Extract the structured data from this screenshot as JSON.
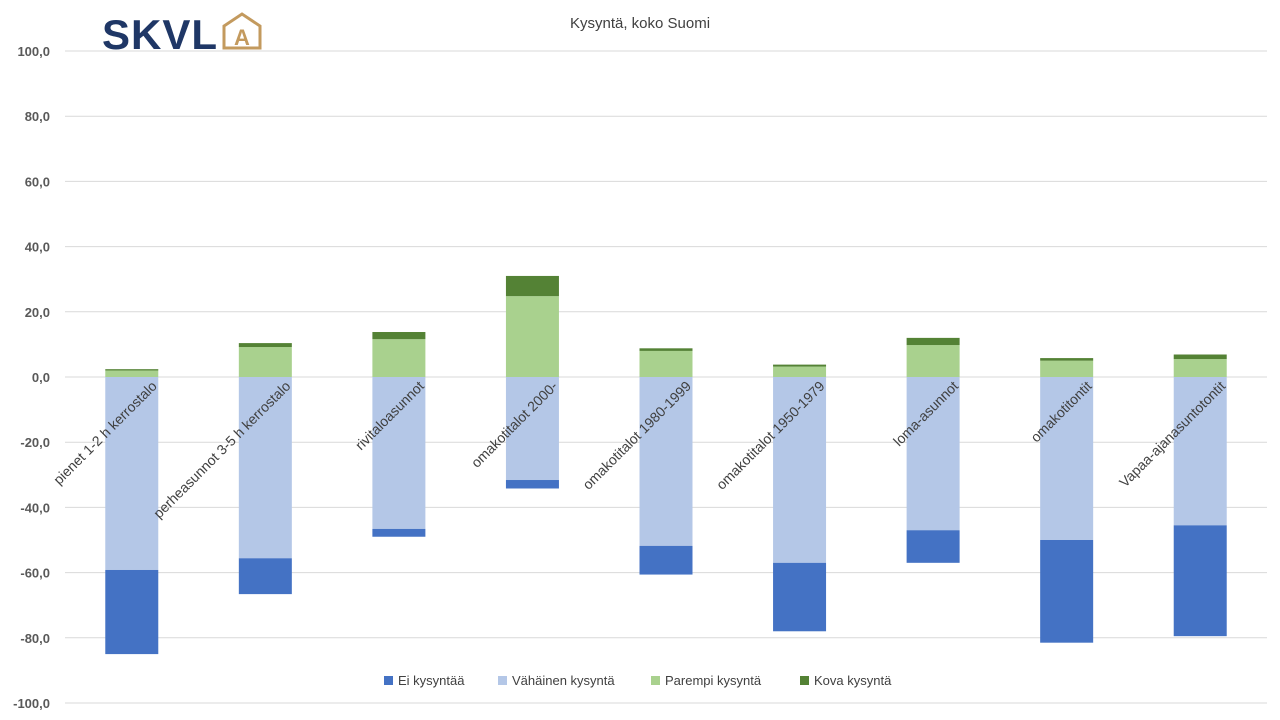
{
  "logo": {
    "text": "SKVL",
    "mark": "A"
  },
  "chart_data": {
    "type": "bar",
    "stacked": true,
    "title": "Kysyntä, koko Suomi",
    "xlabel": "",
    "ylabel": "",
    "ylim": [
      -100,
      100
    ],
    "yticks": [
      "100,0",
      "80,0",
      "60,0",
      "40,0",
      "20,0",
      "0,0",
      "-20,0",
      "-40,0",
      "-60,0",
      "-80,0",
      "-100,0"
    ],
    "ytick_values": [
      100,
      80,
      60,
      40,
      20,
      0,
      -20,
      -40,
      -60,
      -80,
      -100
    ],
    "grid": true,
    "legend_position": "bottom",
    "categories": [
      "pienet 1-2 h kerrostalo",
      "perheasunnot 3-5 h kerrostalo",
      "rivitaloasunnot",
      "omakotitalot 2000-",
      "omakotitalot 1980-1999",
      "omakotitalot 1950-1979",
      "loma-asunnot",
      "omakotitontit",
      "Vapaa-ajanasuntotontit"
    ],
    "series": [
      {
        "name": "Ei kysyntää",
        "color": "#4472c4",
        "values": [
          -25.8,
          -11.0,
          -2.4,
          -2.6,
          -8.8,
          -21.0,
          -10.0,
          -31.5,
          -34.0
        ]
      },
      {
        "name": "Vähäinen kysyntä",
        "color": "#b4c7e7",
        "values": [
          -59.2,
          -55.6,
          -46.6,
          -31.6,
          -51.8,
          -57.0,
          -47.0,
          -50.0,
          -45.5
        ]
      },
      {
        "name": "Parempi kysyntä",
        "color": "#a9d18e",
        "values": [
          2.0,
          9.2,
          11.6,
          24.8,
          8.0,
          3.2,
          9.8,
          5.0,
          5.5
        ]
      },
      {
        "name": "Kova kysyntä",
        "color": "#548235",
        "values": [
          0.4,
          1.2,
          2.2,
          6.2,
          0.8,
          0.6,
          2.2,
          0.8,
          1.4
        ]
      }
    ]
  }
}
